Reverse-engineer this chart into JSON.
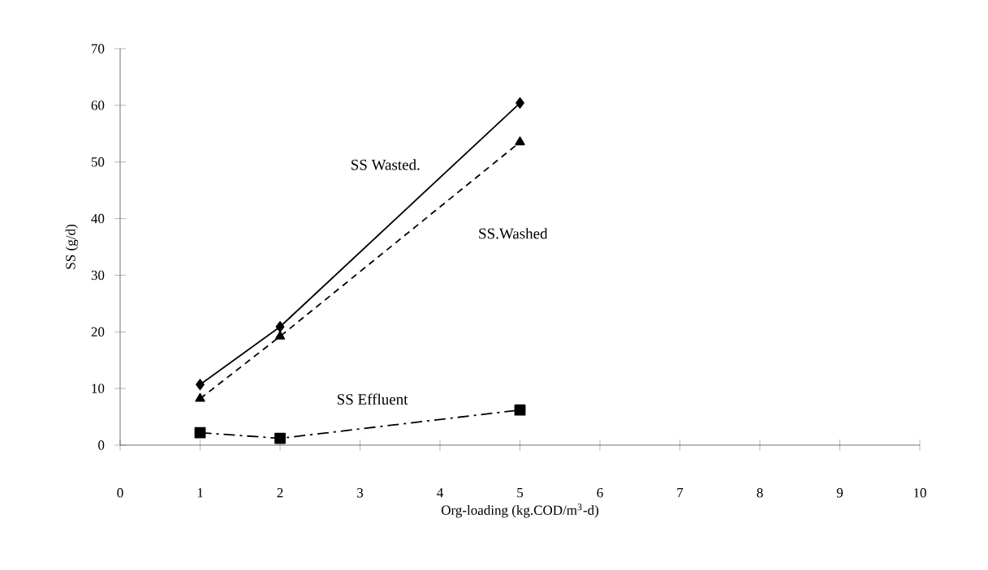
{
  "chart_data": {
    "type": "line",
    "xlabel": "Org-loading (kg.COD/m$^{3}$-d)",
    "ylabel": "SS   (g/d)",
    "x": [
      1,
      2,
      5
    ],
    "series": [
      {
        "name": "SS Wasted.",
        "color": "#000000",
        "values": [
          10.7,
          20.9,
          60.4
        ],
        "marker": "diamond",
        "line_style": "solid"
      },
      {
        "name": "SS.Washed",
        "color": "#000000",
        "values": [
          8.2,
          19.2,
          53.5
        ],
        "marker": "triangle",
        "line_style": "dashed"
      },
      {
        "name": "SS Effluent",
        "color": "#000000",
        "values": [
          2.2,
          1.2,
          6.2
        ],
        "marker": "square",
        "line_style": "dashdot"
      }
    ],
    "xlim": [
      0,
      10
    ],
    "ylim": [
      0,
      70
    ],
    "xticks": [
      0,
      1,
      2,
      3,
      4,
      5,
      6,
      7,
      8,
      9,
      10
    ],
    "yticks": [
      0,
      10,
      20,
      30,
      40,
      50,
      60,
      70
    ],
    "grid": false,
    "legend": false
  }
}
